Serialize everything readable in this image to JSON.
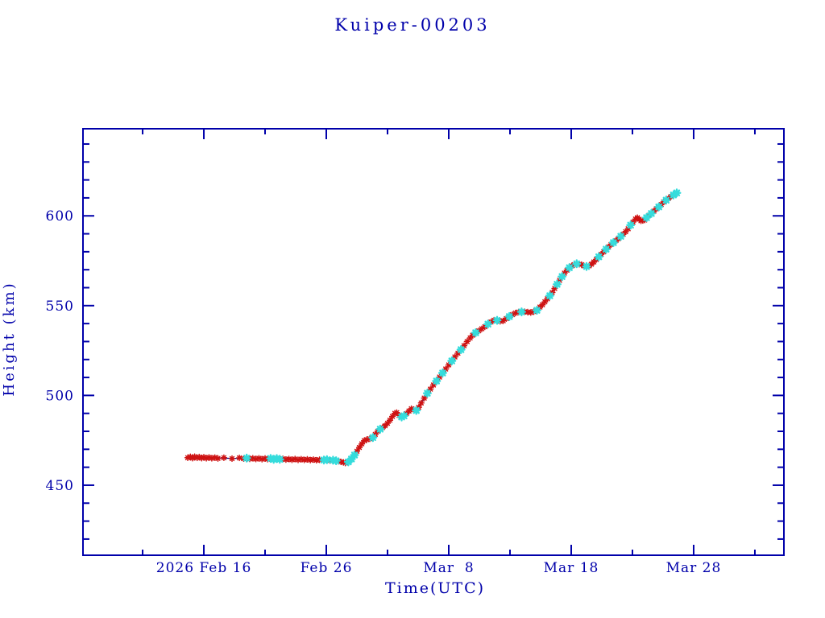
{
  "colors": {
    "axis": "#0000AA",
    "line": "#000080",
    "marker_red": "#CE1212",
    "marker_cyan": "#35DCDC",
    "background": "#FFFFFF"
  },
  "chart_data": {
    "type": "line",
    "title": "Kuiper-00203",
    "xlabel": "Time(UTC)",
    "ylabel": "Height (km)",
    "x_unit": "days since 2026 Feb 16 00:00 UTC",
    "xlim": [
      -9.87,
      47.37
    ],
    "ylim": [
      411,
      648.5
    ],
    "grid": false,
    "legend": "none",
    "x_major_ticks": [
      {
        "day": 0,
        "label": "2026 Feb 16"
      },
      {
        "day": 10,
        "label": "Feb 26"
      },
      {
        "day": 20,
        "label": "Mar  8"
      },
      {
        "day": 30,
        "label": "Mar 18"
      },
      {
        "day": 40,
        "label": "Mar 28"
      }
    ],
    "x_minor_tick_days": [
      -5,
      5,
      15,
      25,
      35,
      45
    ],
    "y_major_ticks": [
      450,
      500,
      550,
      600
    ],
    "y_minor_tick_step": 10,
    "series": [
      {
        "name": "height-track-line",
        "style": "line",
        "color": "#000080",
        "points": [
          [
            -1.32,
            465.5
          ],
          [
            0,
            465.4
          ],
          [
            2,
            465.0
          ],
          [
            4,
            464.8
          ],
          [
            6,
            464.5
          ],
          [
            8,
            464.3
          ],
          [
            9.5,
            464.1
          ],
          [
            10.5,
            463.7
          ],
          [
            11.0,
            463.3
          ],
          [
            11.55,
            462.4
          ],
          [
            11.9,
            463.8
          ],
          [
            12.3,
            466.9
          ],
          [
            12.7,
            471.0
          ],
          [
            13.0,
            474.3
          ],
          [
            13.3,
            475.4
          ],
          [
            13.7,
            476.3
          ],
          [
            14.0,
            478.3
          ],
          [
            14.3,
            480.8
          ],
          [
            14.7,
            482.4
          ],
          [
            15.0,
            484.5
          ],
          [
            15.3,
            487.3
          ],
          [
            15.6,
            490.0
          ],
          [
            15.75,
            490.4
          ],
          [
            15.95,
            488.9
          ],
          [
            16.2,
            487.9
          ],
          [
            16.5,
            489.5
          ],
          [
            16.8,
            491.7
          ],
          [
            16.95,
            492.6
          ],
          [
            17.15,
            492.0
          ],
          [
            17.35,
            491.6
          ],
          [
            17.6,
            493.8
          ],
          [
            18.0,
            498.5
          ],
          [
            18.5,
            503.5
          ],
          [
            19.0,
            508.0
          ],
          [
            19.5,
            512.5
          ],
          [
            20.0,
            517.0
          ],
          [
            20.5,
            521.4
          ],
          [
            21.0,
            525.5
          ],
          [
            21.5,
            530.0
          ],
          [
            21.9,
            533.2
          ],
          [
            22.3,
            535.3
          ],
          [
            22.8,
            537.6
          ],
          [
            23.3,
            540.2
          ],
          [
            23.7,
            541.9
          ],
          [
            24.0,
            541.7
          ],
          [
            24.2,
            541.3
          ],
          [
            24.7,
            542.8
          ],
          [
            25.2,
            545.0
          ],
          [
            25.6,
            546.3
          ],
          [
            26.0,
            546.5
          ],
          [
            26.4,
            546.4
          ],
          [
            26.7,
            546.2
          ],
          [
            27.0,
            546.8
          ],
          [
            27.3,
            547.8
          ],
          [
            27.7,
            550.8
          ],
          [
            28.1,
            554.2
          ],
          [
            28.5,
            557.7
          ],
          [
            28.9,
            562.4
          ],
          [
            29.3,
            566.7
          ],
          [
            29.7,
            570.0
          ],
          [
            30.0,
            572.0
          ],
          [
            30.3,
            573.0
          ],
          [
            30.5,
            573.3
          ],
          [
            30.8,
            572.9
          ],
          [
            31.1,
            572.0
          ],
          [
            31.3,
            571.8
          ],
          [
            31.6,
            572.9
          ],
          [
            32.0,
            575.4
          ],
          [
            32.4,
            578.3
          ],
          [
            32.8,
            581.1
          ],
          [
            33.2,
            583.7
          ],
          [
            33.6,
            586.0
          ],
          [
            34.0,
            588.3
          ],
          [
            34.4,
            590.9
          ],
          [
            34.8,
            594.2
          ],
          [
            35.2,
            597.8
          ],
          [
            35.4,
            599.0
          ],
          [
            35.6,
            597.9
          ],
          [
            35.8,
            597.3
          ],
          [
            36.0,
            597.7
          ],
          [
            36.2,
            599.4
          ],
          [
            36.6,
            601.6
          ],
          [
            37.0,
            604.1
          ],
          [
            37.4,
            606.6
          ],
          [
            37.8,
            609.0
          ],
          [
            38.2,
            611.0
          ],
          [
            38.62,
            612.8
          ]
        ]
      },
      {
        "name": "observations-red",
        "style": "asterisk",
        "color": "#CE1212",
        "points": [
          [
            -1.32,
            465.3
          ],
          [
            -1.1,
            465.8
          ],
          [
            -0.92,
            465.1
          ],
          [
            -0.75,
            465.9
          ],
          [
            -0.55,
            465.2
          ],
          [
            -0.38,
            465.7
          ],
          [
            -0.18,
            465.1
          ],
          [
            0.0,
            465.6
          ],
          [
            0.2,
            465.0
          ],
          [
            0.42,
            465.5
          ],
          [
            0.65,
            465.0
          ],
          [
            0.9,
            465.4
          ],
          [
            1.15,
            464.9
          ],
          [
            1.64,
            465.3
          ],
          [
            2.3,
            464.8
          ],
          [
            2.9,
            465.2
          ],
          [
            3.25,
            464.8
          ],
          [
            3.75,
            464.7
          ],
          [
            4.0,
            465.0
          ],
          [
            4.25,
            464.6
          ],
          [
            4.5,
            465.0
          ],
          [
            4.75,
            464.5
          ],
          [
            5.0,
            464.9
          ],
          [
            5.2,
            464.5
          ],
          [
            6.45,
            464.7
          ],
          [
            6.7,
            464.3
          ],
          [
            6.95,
            464.6
          ],
          [
            7.2,
            464.2
          ],
          [
            7.45,
            464.6
          ],
          [
            7.7,
            464.1
          ],
          [
            7.95,
            464.5
          ],
          [
            8.2,
            464.1
          ],
          [
            8.45,
            464.4
          ],
          [
            8.7,
            464.0
          ],
          [
            8.95,
            464.3
          ],
          [
            9.2,
            463.9
          ],
          [
            9.45,
            464.2
          ],
          [
            10.3,
            463.8
          ],
          [
            11.0,
            463.4
          ],
          [
            11.2,
            463.0
          ],
          [
            11.4,
            462.7
          ],
          [
            11.55,
            462.4
          ],
          [
            12.5,
            468.9
          ],
          [
            12.7,
            471.0
          ],
          [
            12.9,
            473.0
          ],
          [
            13.1,
            474.8
          ],
          [
            13.3,
            475.4
          ],
          [
            13.55,
            475.9
          ],
          [
            14.0,
            478.3
          ],
          [
            14.2,
            480.0
          ],
          [
            14.6,
            482.1
          ],
          [
            14.8,
            483.1
          ],
          [
            15.0,
            484.5
          ],
          [
            15.2,
            486.2
          ],
          [
            15.4,
            488.3
          ],
          [
            15.6,
            490.0
          ],
          [
            15.75,
            490.4
          ],
          [
            15.95,
            488.9
          ],
          [
            16.55,
            489.9
          ],
          [
            16.75,
            491.3
          ],
          [
            16.95,
            492.6
          ],
          [
            17.15,
            492.0
          ],
          [
            17.55,
            493.4
          ],
          [
            17.75,
            495.8
          ],
          [
            18.0,
            498.5
          ],
          [
            18.5,
            503.5
          ],
          [
            18.75,
            505.8
          ],
          [
            19.25,
            510.2
          ],
          [
            19.75,
            514.7
          ],
          [
            20.0,
            517.0
          ],
          [
            20.5,
            521.4
          ],
          [
            20.75,
            523.5
          ],
          [
            21.25,
            527.7
          ],
          [
            21.5,
            530.0
          ],
          [
            21.75,
            532.0
          ],
          [
            21.95,
            533.5
          ],
          [
            22.45,
            536.0
          ],
          [
            22.7,
            537.1
          ],
          [
            22.95,
            538.2
          ],
          [
            23.45,
            540.9
          ],
          [
            23.7,
            541.9
          ],
          [
            24.2,
            541.3
          ],
          [
            24.45,
            541.6
          ],
          [
            24.7,
            542.8
          ],
          [
            25.2,
            545.0
          ],
          [
            25.45,
            545.9
          ],
          [
            25.7,
            546.4
          ],
          [
            26.2,
            546.6
          ],
          [
            26.45,
            546.4
          ],
          [
            26.7,
            546.2
          ],
          [
            26.95,
            546.7
          ],
          [
            27.45,
            549.2
          ],
          [
            27.65,
            550.5
          ],
          [
            27.85,
            552.1
          ],
          [
            28.05,
            553.8
          ],
          [
            28.45,
            557.3
          ],
          [
            28.65,
            559.6
          ],
          [
            29.05,
            564.1
          ],
          [
            29.45,
            568.1
          ],
          [
            29.65,
            569.7
          ],
          [
            30.05,
            572.2
          ],
          [
            30.25,
            572.8
          ],
          [
            30.65,
            573.1
          ],
          [
            30.85,
            572.8
          ],
          [
            31.05,
            572.1
          ],
          [
            31.45,
            572.1
          ],
          [
            31.65,
            573.1
          ],
          [
            31.85,
            574.3
          ],
          [
            32.05,
            575.7
          ],
          [
            32.45,
            578.6
          ],
          [
            32.65,
            580.0
          ],
          [
            33.05,
            582.7
          ],
          [
            33.25,
            584.0
          ],
          [
            33.65,
            586.2
          ],
          [
            33.85,
            587.3
          ],
          [
            34.25,
            589.8
          ],
          [
            34.45,
            591.2
          ],
          [
            34.65,
            592.8
          ],
          [
            35.05,
            596.5
          ],
          [
            35.25,
            598.2
          ],
          [
            35.4,
            599.0
          ],
          [
            35.55,
            598.1
          ],
          [
            35.7,
            597.3
          ],
          [
            35.85,
            597.4
          ],
          [
            36.0,
            597.7
          ],
          [
            36.35,
            600.3
          ],
          [
            36.75,
            602.6
          ],
          [
            36.95,
            603.9
          ],
          [
            37.35,
            606.3
          ],
          [
            37.55,
            607.7
          ],
          [
            37.95,
            609.8
          ],
          [
            38.15,
            610.8
          ],
          [
            38.5,
            612.2
          ]
        ]
      },
      {
        "name": "observations-cyan",
        "style": "asterisk",
        "color": "#35DCDC",
        "points": [
          [
            3.5,
            465.1
          ],
          [
            5.45,
            464.9
          ],
          [
            5.7,
            464.4
          ],
          [
            5.95,
            464.8
          ],
          [
            6.2,
            464.4
          ],
          [
            9.8,
            464.0
          ],
          [
            10.05,
            464.2
          ],
          [
            10.55,
            463.9
          ],
          [
            10.8,
            463.6
          ],
          [
            11.8,
            463.0
          ],
          [
            12.05,
            464.6
          ],
          [
            12.3,
            466.8
          ],
          [
            13.8,
            476.5
          ],
          [
            14.4,
            481.2
          ],
          [
            16.15,
            488.0
          ],
          [
            16.35,
            488.6
          ],
          [
            17.35,
            491.6
          ],
          [
            18.25,
            501.2
          ],
          [
            19.0,
            508.0
          ],
          [
            19.5,
            512.5
          ],
          [
            20.25,
            519.2
          ],
          [
            21.0,
            525.5
          ],
          [
            22.2,
            534.9
          ],
          [
            23.2,
            539.7
          ],
          [
            23.95,
            541.8
          ],
          [
            24.95,
            543.9
          ],
          [
            25.95,
            546.5
          ],
          [
            27.2,
            547.4
          ],
          [
            28.25,
            555.5
          ],
          [
            28.85,
            561.9
          ],
          [
            29.25,
            566.2
          ],
          [
            29.85,
            571.1
          ],
          [
            30.45,
            573.3
          ],
          [
            31.25,
            571.8
          ],
          [
            32.25,
            577.2
          ],
          [
            32.85,
            581.4
          ],
          [
            33.45,
            585.1
          ],
          [
            34.05,
            588.6
          ],
          [
            34.85,
            594.8
          ],
          [
            36.15,
            599.0
          ],
          [
            36.55,
            601.3
          ],
          [
            37.15,
            605.0
          ],
          [
            37.75,
            608.7
          ],
          [
            38.35,
            611.6
          ],
          [
            38.62,
            612.8
          ]
        ]
      }
    ]
  }
}
